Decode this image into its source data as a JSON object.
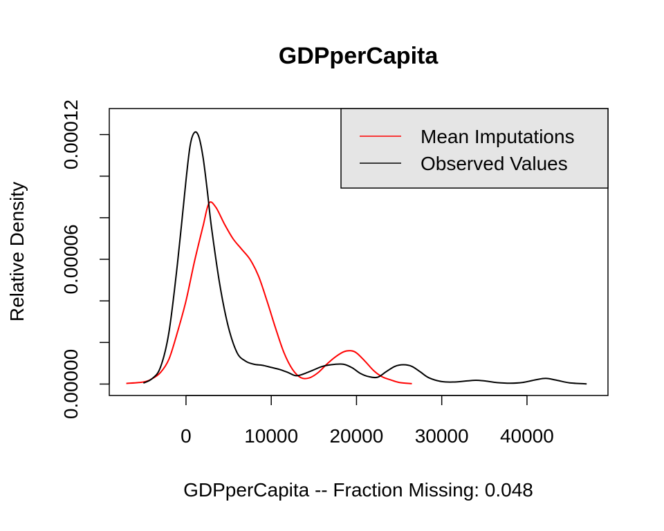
{
  "chart_data": {
    "type": "line",
    "title": "GDPperCapita",
    "xlabel": "GDPperCapita   --  Fraction Missing: 0.048",
    "ylabel": "Relative Density",
    "xlim": [
      -9000,
      49500
    ],
    "ylim": [
      -5.5e-06,
      0.0001325
    ],
    "x_ticks": [
      0,
      10000,
      20000,
      30000,
      40000
    ],
    "x_tick_labels": [
      "0",
      "10000",
      "20000",
      "30000",
      "40000"
    ],
    "y_ticks": [
      0,
      2e-05,
      4e-05,
      6e-05,
      8e-05,
      0.0001,
      0.00012
    ],
    "y_tick_labels": [
      "0.00000",
      "",
      "",
      "0.00006",
      "",
      "",
      "0.00012"
    ],
    "grid": false,
    "legend": {
      "position": "top-right",
      "entries": [
        {
          "label": "Mean Imputations",
          "color": "#ff0000"
        },
        {
          "label": "Observed Values",
          "color": "#000000"
        }
      ]
    },
    "series": [
      {
        "name": "Mean Imputations",
        "color": "#ff0000",
        "x": [
          -7000,
          -5000,
          -4000,
          -3000,
          -2000,
          -1000,
          0,
          1000,
          2000,
          2700,
          3500,
          4500,
          5500,
          6500,
          7500,
          8500,
          9500,
          10500,
          11500,
          12500,
          13500,
          14500,
          15500,
          16500,
          17500,
          18500,
          19300,
          20000,
          21000,
          22000,
          23000,
          24000,
          25000,
          26500
        ],
        "y": [
          3e-07,
          1e-06,
          2.5e-06,
          5.5e-06,
          1.2e-05,
          2.5e-05,
          4e-05,
          5.9e-05,
          7.6e-05,
          8.7e-05,
          8.5e-05,
          7.7e-05,
          7e-05,
          6.5e-05,
          6e-05,
          5.2e-05,
          4e-05,
          2.7e-05,
          1.5e-05,
          7e-06,
          3e-06,
          3e-06,
          5.5e-06,
          9.5e-06,
          1.3e-05,
          1.55e-05,
          1.6e-05,
          1.5e-05,
          1.1e-05,
          6.5e-06,
          3.5e-06,
          2e-06,
          8e-07,
          2e-07
        ]
      },
      {
        "name": "Observed Values",
        "color": "#000000",
        "x": [
          -5000,
          -4000,
          -3000,
          -2000,
          -1000,
          0,
          500,
          1000,
          1500,
          2000,
          2500,
          3000,
          4000,
          5000,
          6000,
          7000,
          8000,
          9000,
          10000,
          11000,
          12000,
          13000,
          14500,
          16000,
          17500,
          18500,
          19500,
          20500,
          21500,
          22500,
          23500,
          24500,
          25500,
          26500,
          27500,
          28500,
          30000,
          31500,
          33000,
          34000,
          35000,
          36500,
          38000,
          39500,
          41000,
          42200,
          43500,
          45000,
          47000
        ],
        "y": [
          5e-07,
          2.5e-06,
          8e-06,
          2.5e-05,
          5.8e-05,
          9.8e-05,
          0.000115,
          0.000121,
          0.000119,
          0.000109,
          9.3e-05,
          7.5e-05,
          4.7e-05,
          2.7e-05,
          1.5e-05,
          1.1e-05,
          9.5e-06,
          9e-06,
          8e-06,
          7e-06,
          5.5e-06,
          4e-06,
          6e-06,
          8.5e-06,
          9.5e-06,
          9.5e-06,
          7.8e-06,
          5e-06,
          3.5e-06,
          3.3e-06,
          6e-06,
          8.5e-06,
          9.3e-06,
          8.5e-06,
          5.8e-06,
          3e-06,
          1.2e-06,
          1e-06,
          1.5e-06,
          1.8e-06,
          1.5e-06,
          7e-07,
          4e-07,
          8e-07,
          2e-06,
          2.7e-06,
          1.8e-06,
          6e-07,
          1e-07
        ]
      }
    ]
  }
}
